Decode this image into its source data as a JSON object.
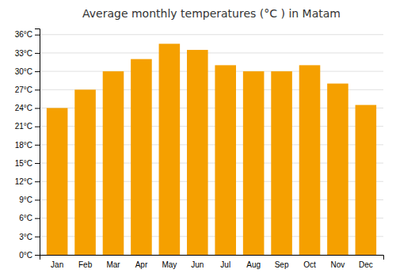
{
  "chart_data": {
    "type": "bar",
    "title": "Average monthly temperatures (°C ) in Matam",
    "categories": [
      "Jan",
      "Feb",
      "Mar",
      "Apr",
      "May",
      "Jun",
      "Jul",
      "Aug",
      "Sep",
      "Oct",
      "Nov",
      "Dec"
    ],
    "values": [
      24,
      27,
      30,
      32,
      34.5,
      33.5,
      31,
      30,
      30,
      31,
      28,
      24.5
    ],
    "color": "#F5A000",
    "ylim": [
      0,
      37
    ],
    "yticks": [
      {
        "value": 0,
        "label": "0°C"
      },
      {
        "value": 3,
        "label": "3°C"
      },
      {
        "value": 6,
        "label": "6°C"
      },
      {
        "value": 9,
        "label": "9°C"
      },
      {
        "value": 12,
        "label": "12°C"
      },
      {
        "value": 15,
        "label": "15°C"
      },
      {
        "value": 18,
        "label": "18°C"
      },
      {
        "value": 21,
        "label": "21°C"
      },
      {
        "value": 24,
        "label": "24°C"
      },
      {
        "value": 27,
        "label": "27°C"
      },
      {
        "value": 30,
        "label": "30°C"
      },
      {
        "value": 33,
        "label": "33°C"
      },
      {
        "value": 36,
        "label": "36°C"
      }
    ],
    "grid": true
  }
}
